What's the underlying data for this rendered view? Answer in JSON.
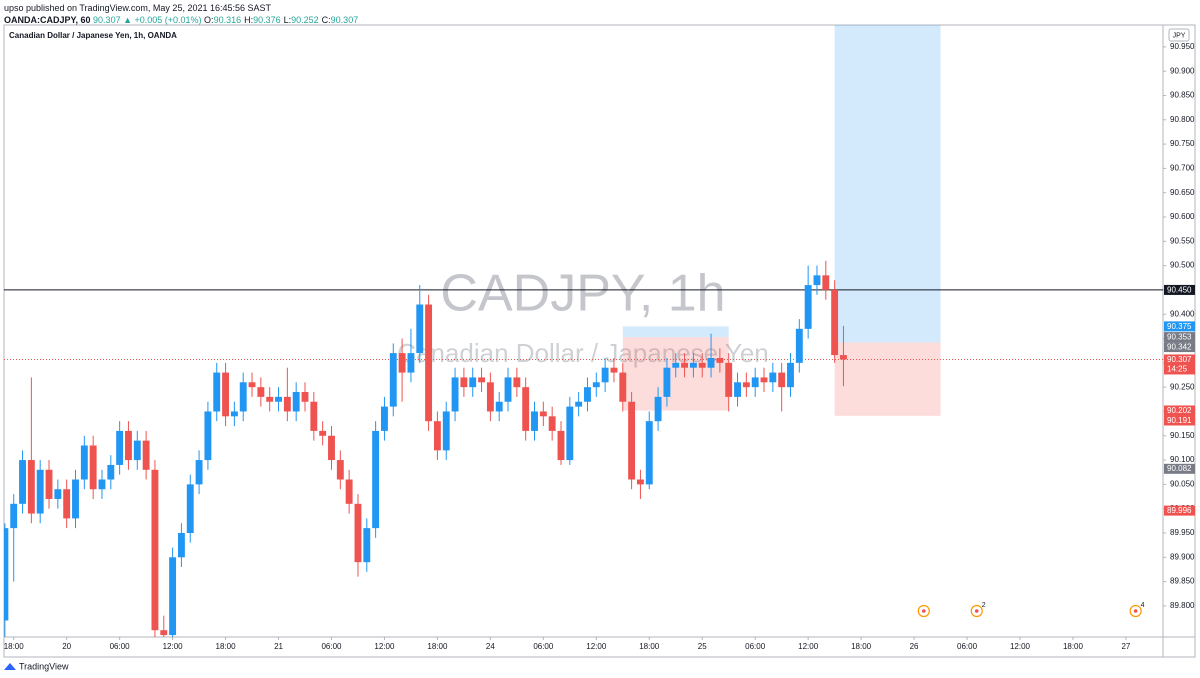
{
  "header": {
    "publisher": "upso published on TradingView.com, May 25, 2021 16:45:56 SAST",
    "symbol": "OANDA:CADJPY, 60",
    "change": "90.307 ▲ +0.005 (+0.01%)",
    "ohlc": [
      {
        "k": "O:",
        "v": "90.316"
      },
      {
        "k": "H:",
        "v": "90.376"
      },
      {
        "k": "L:",
        "v": "90.252"
      },
      {
        "k": "C:",
        "v": "90.307"
      }
    ]
  },
  "footer": "TradingView",
  "chart_data": {
    "type": "candlestick",
    "title": "Canadian Dollar / Japanese Yen, 1h, OANDA",
    "watermark": "CADJPY, 1h",
    "watermark_sub": "Canadian Dollar / Japanese Yen",
    "currency": "JPY",
    "up_color": "#2196f3",
    "down_color": "#ef5350",
    "open": [
      89.77,
      89.96,
      90.01,
      90.1,
      89.99,
      90.08,
      90.02,
      90.04,
      89.98,
      90.06,
      90.13,
      90.04,
      90.06,
      90.09,
      90.16,
      90.1,
      90.14,
      90.08,
      89.75,
      89.74,
      89.9,
      89.95,
      90.05,
      90.1,
      90.2,
      90.28,
      90.19,
      90.2,
      90.26,
      90.25,
      90.23,
      90.22,
      90.23,
      90.2,
      90.24,
      90.22,
      90.16,
      90.15,
      90.1,
      90.06,
      90.01,
      89.89,
      89.96,
      90.16,
      90.21,
      90.32,
      90.28,
      90.32,
      90.42,
      90.18,
      90.12,
      90.2,
      90.27,
      90.25,
      90.27,
      90.26,
      90.2,
      90.22,
      90.27,
      90.25,
      90.16,
      90.2,
      90.19,
      90.16,
      90.1,
      90.21,
      90.22,
      90.25,
      90.26,
      90.29,
      90.28,
      90.22,
      90.06,
      90.05,
      90.18,
      90.23,
      90.29,
      90.3,
      90.29,
      90.3,
      90.29,
      90.31,
      90.3,
      90.23,
      90.26,
      90.25,
      90.27,
      90.26,
      90.28,
      90.25,
      90.3,
      90.37,
      90.46,
      90.48,
      90.45,
      90.316
    ],
    "high": [
      89.97,
      90.03,
      90.12,
      90.27,
      90.1,
      90.1,
      90.06,
      90.06,
      90.08,
      90.15,
      90.15,
      90.08,
      90.11,
      90.18,
      90.18,
      90.16,
      90.16,
      90.1,
      89.78,
      89.92,
      89.97,
      90.07,
      90.12,
      90.22,
      90.3,
      90.3,
      90.22,
      90.28,
      90.28,
      90.27,
      90.25,
      90.25,
      90.29,
      90.26,
      90.26,
      90.24,
      90.18,
      90.17,
      90.12,
      90.08,
      90.03,
      89.98,
      90.18,
      90.23,
      90.34,
      90.35,
      90.37,
      90.46,
      90.44,
      90.2,
      90.22,
      90.29,
      90.29,
      90.29,
      90.29,
      90.28,
      90.24,
      90.29,
      90.29,
      90.27,
      90.22,
      90.22,
      90.21,
      90.18,
      90.23,
      90.24,
      90.27,
      90.28,
      90.31,
      90.31,
      90.3,
      90.24,
      90.08,
      90.2,
      90.25,
      90.31,
      90.32,
      90.32,
      90.32,
      90.32,
      90.36,
      90.33,
      90.32,
      90.28,
      90.28,
      90.29,
      90.29,
      90.3,
      90.3,
      90.32,
      90.39,
      90.5,
      90.5,
      90.51,
      90.47,
      90.376
    ],
    "low": [
      89.7,
      89.85,
      89.99,
      89.97,
      89.97,
      90.0,
      90.0,
      89.96,
      89.96,
      90.04,
      90.02,
      90.02,
      90.04,
      90.07,
      90.08,
      90.08,
      90.06,
      89.7,
      89.7,
      89.72,
      89.88,
      89.93,
      90.03,
      90.08,
      90.18,
      90.17,
      90.17,
      90.18,
      90.23,
      90.21,
      90.2,
      90.2,
      90.18,
      90.18,
      90.2,
      90.14,
      90.13,
      90.08,
      90.04,
      89.99,
      89.86,
      89.87,
      89.94,
      90.14,
      90.19,
      90.22,
      90.26,
      90.3,
      90.16,
      90.1,
      90.1,
      90.18,
      90.23,
      90.23,
      90.24,
      90.18,
      90.18,
      90.2,
      90.23,
      90.14,
      90.14,
      90.17,
      90.14,
      90.09,
      90.09,
      90.19,
      90.2,
      90.23,
      90.24,
      90.26,
      90.2,
      90.04,
      90.02,
      90.04,
      90.16,
      90.21,
      90.27,
      90.27,
      90.27,
      90.27,
      90.27,
      90.28,
      90.2,
      90.21,
      90.23,
      90.23,
      90.24,
      90.24,
      90.2,
      90.23,
      90.28,
      90.35,
      90.44,
      90.43,
      90.3,
      90.252
    ],
    "close": [
      89.96,
      90.01,
      90.1,
      89.99,
      90.08,
      90.02,
      90.04,
      89.98,
      90.06,
      90.13,
      90.04,
      90.06,
      90.09,
      90.16,
      90.1,
      90.14,
      90.08,
      89.75,
      89.74,
      89.9,
      89.95,
      90.05,
      90.1,
      90.2,
      90.28,
      90.19,
      90.2,
      90.26,
      90.25,
      90.23,
      90.22,
      90.23,
      90.2,
      90.24,
      90.22,
      90.16,
      90.15,
      90.1,
      90.06,
      90.01,
      89.89,
      89.96,
      90.16,
      90.21,
      90.32,
      90.28,
      90.32,
      90.42,
      90.18,
      90.12,
      90.2,
      90.27,
      90.25,
      90.27,
      90.26,
      90.2,
      90.22,
      90.27,
      90.25,
      90.16,
      90.2,
      90.19,
      90.16,
      90.1,
      90.21,
      90.22,
      90.25,
      90.26,
      90.29,
      90.28,
      90.22,
      90.06,
      90.05,
      90.18,
      90.23,
      90.29,
      90.3,
      90.29,
      90.3,
      90.29,
      90.31,
      90.3,
      90.23,
      90.26,
      90.25,
      90.27,
      90.26,
      90.28,
      90.25,
      90.3,
      90.37,
      90.46,
      90.48,
      90.45,
      90.316,
      90.307
    ],
    "xlim": [
      -0.1,
      131.2
    ],
    "xticks": [
      {
        "value": 1,
        "label": "18:00"
      },
      {
        "value": 7,
        "label": "20"
      },
      {
        "value": 13,
        "label": "06:00"
      },
      {
        "value": 19,
        "label": "12:00"
      },
      {
        "value": 25,
        "label": "18:00"
      },
      {
        "value": 31,
        "label": "21"
      },
      {
        "value": 37,
        "label": "06:00"
      },
      {
        "value": 43,
        "label": "12:00"
      },
      {
        "value": 49,
        "label": "18:00"
      },
      {
        "value": 55,
        "label": "24"
      },
      {
        "value": 61,
        "label": "06:00"
      },
      {
        "value": 67,
        "label": "12:00"
      },
      {
        "value": 73,
        "label": "18:00"
      },
      {
        "value": 79,
        "label": "25"
      },
      {
        "value": 85,
        "label": "06:00"
      },
      {
        "value": 91,
        "label": "12:00"
      },
      {
        "value": 97,
        "label": "18:00"
      },
      {
        "value": 103,
        "label": "26"
      },
      {
        "value": 109,
        "label": "06:00"
      },
      {
        "value": 115,
        "label": "12:00"
      },
      {
        "value": 121,
        "label": "18:00"
      },
      {
        "value": 127,
        "label": "27"
      }
    ],
    "ylim": [
      89.771,
      90.995
    ],
    "yticks": [
      {
        "value": 89.8,
        "label": "89.800"
      },
      {
        "value": 89.85,
        "label": "89.850"
      },
      {
        "value": 89.9,
        "label": "89.900"
      },
      {
        "value": 89.95,
        "label": "89.950"
      },
      {
        "value": 90.0,
        "label": "90.000"
      },
      {
        "value": 90.05,
        "label": "90.050"
      },
      {
        "value": 90.1,
        "label": "90.100"
      },
      {
        "value": 90.15,
        "label": "90.150"
      },
      {
        "value": 90.2,
        "label": "90.200"
      },
      {
        "value": 90.25,
        "label": "90.250"
      },
      {
        "value": 90.3,
        "label": "90.300"
      },
      {
        "value": 90.35,
        "label": "90.350"
      },
      {
        "value": 90.4,
        "label": "90.400"
      },
      {
        "value": 90.45,
        "label": "90.450"
      },
      {
        "value": 90.5,
        "label": "90.500"
      },
      {
        "value": 90.55,
        "label": "90.550"
      },
      {
        "value": 90.6,
        "label": "90.600"
      },
      {
        "value": 90.65,
        "label": "90.650"
      },
      {
        "value": 90.7,
        "label": "90.700"
      },
      {
        "value": 90.75,
        "label": "90.750"
      },
      {
        "value": 90.8,
        "label": "90.800"
      },
      {
        "value": 90.85,
        "label": "90.850"
      },
      {
        "value": 90.9,
        "label": "90.900"
      },
      {
        "value": 90.95,
        "label": "90.950"
      }
    ],
    "grid": false,
    "hline": {
      "value": 90.45,
      "label": "90.450",
      "color": "#131722"
    },
    "last_price": {
      "value": 90.307,
      "label": "90.307",
      "countdown": "14:25",
      "color": "#ef5350"
    },
    "positions": [
      {
        "start": 70.0,
        "end": 82.0,
        "target": {
          "value": 90.375,
          "label": "90.375"
        },
        "entry": {
          "value": 90.353,
          "label": "90.353"
        },
        "stop": {
          "value": 90.202,
          "label": "90.202"
        }
      },
      {
        "start": 94.0,
        "end": 106.0,
        "entry": {
          "value": 90.342,
          "label": "90.342"
        },
        "stop": {
          "value": 90.191,
          "label": "90.191"
        }
      }
    ],
    "price_labels": [
      {
        "value": 90.082,
        "label": "90.082",
        "color": "#787b86"
      },
      {
        "value": 89.996,
        "label": "89.996",
        "color": "#ef5350"
      }
    ],
    "events": [
      {
        "x": 104.1
      },
      {
        "x": 110.1,
        "count": 2
      },
      {
        "x": 128.1,
        "count": 4
      }
    ]
  }
}
